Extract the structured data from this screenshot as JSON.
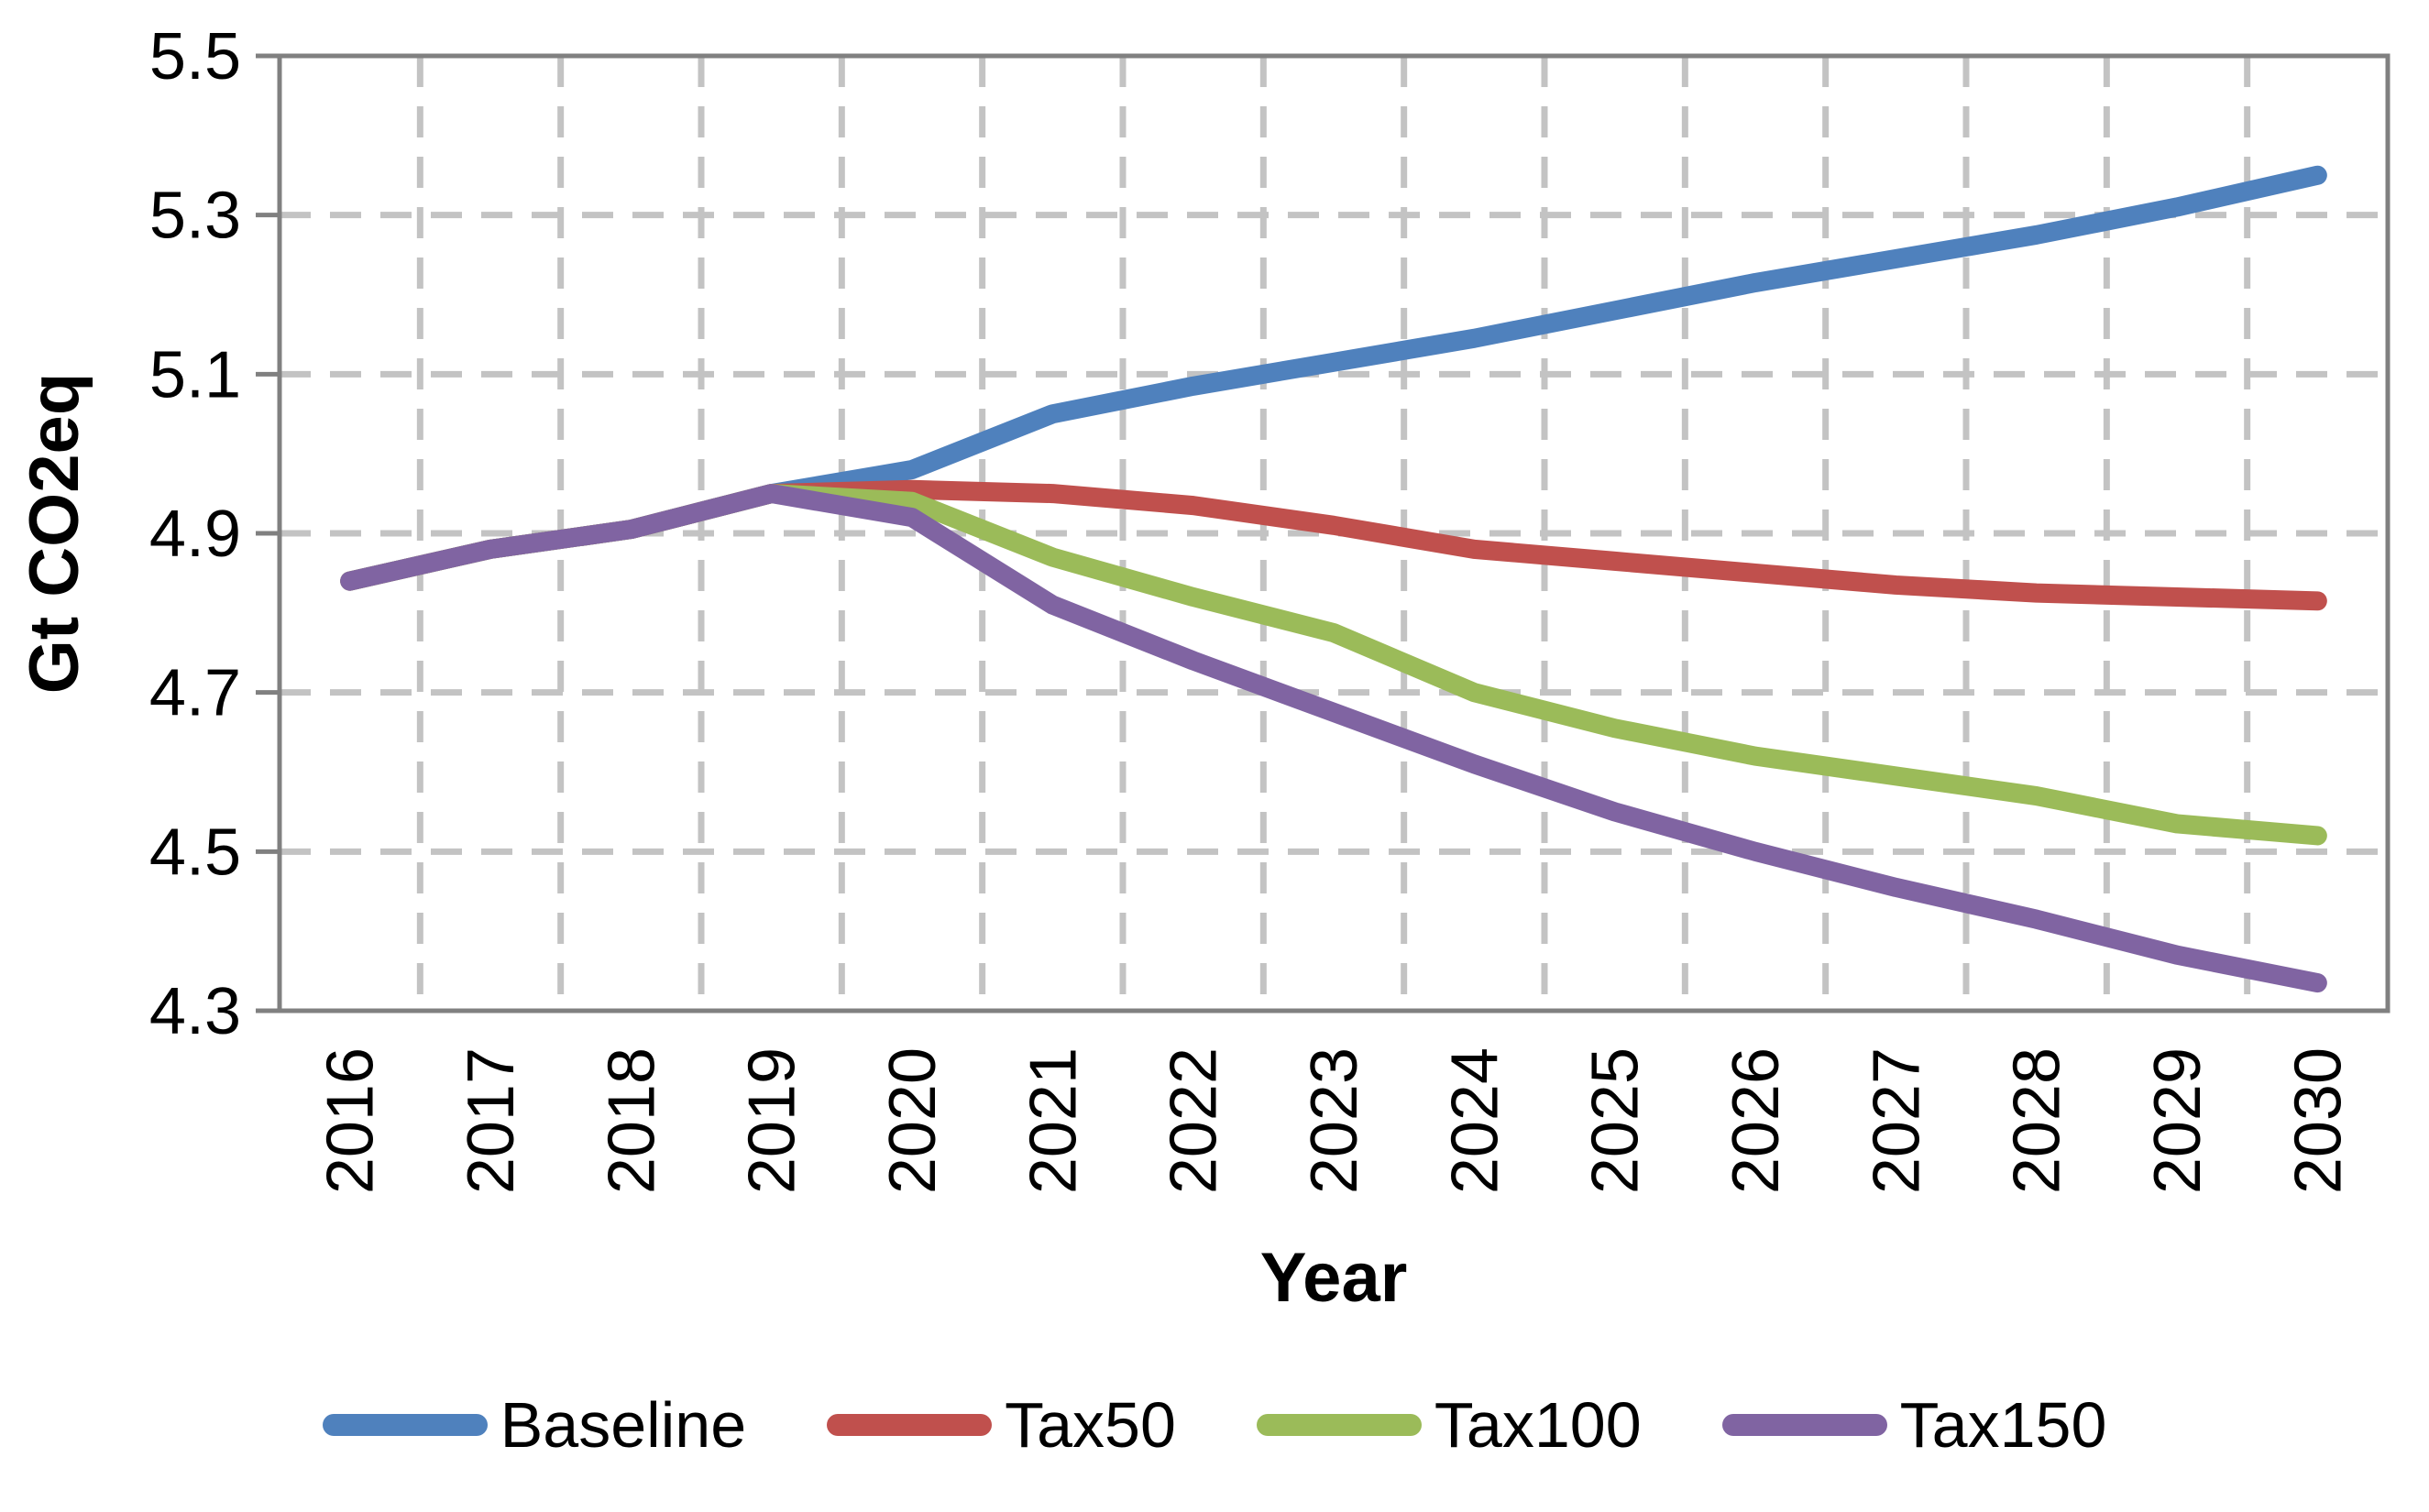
{
  "chart_data": {
    "type": "line",
    "title": "",
    "xlabel": "Year",
    "ylabel": "Gt CO2eq",
    "categories": [
      "2016",
      "2017",
      "2018",
      "2019",
      "2020",
      "2021",
      "2022",
      "2023",
      "2024",
      "2025",
      "2026",
      "2027",
      "2028",
      "2029",
      "2030"
    ],
    "series": [
      {
        "name": "Baseline",
        "color": "#4F81BD",
        "values": [
          4.84,
          4.88,
          4.905,
          4.95,
          4.98,
          5.05,
          5.085,
          5.115,
          5.145,
          5.18,
          5.215,
          5.245,
          5.275,
          5.31,
          5.35
        ]
      },
      {
        "name": "Tax50",
        "color": "#C0504D",
        "values": [
          4.84,
          4.88,
          4.905,
          4.95,
          4.955,
          4.95,
          4.935,
          4.91,
          4.88,
          4.865,
          4.85,
          4.835,
          4.825,
          4.82,
          4.815
        ]
      },
      {
        "name": "Tax100",
        "color": "#9BBB59",
        "values": [
          4.84,
          4.88,
          4.905,
          4.95,
          4.94,
          4.87,
          4.82,
          4.775,
          4.7,
          4.655,
          4.62,
          4.595,
          4.57,
          4.535,
          4.52
        ]
      },
      {
        "name": "Tax150",
        "color": "#8064A2",
        "values": [
          4.84,
          4.88,
          4.905,
          4.95,
          4.92,
          4.81,
          4.74,
          4.675,
          4.61,
          4.55,
          4.5,
          4.455,
          4.415,
          4.37,
          4.335
        ]
      }
    ],
    "ylim": [
      4.3,
      5.5
    ],
    "y_ticks": [
      "5.5",
      "5.3",
      "5.1",
      "4.9",
      "4.7",
      "4.5",
      "4.3"
    ],
    "grid": "dashed horizontal and vertical",
    "legend_position": "bottom",
    "axis_color": "#808080",
    "gridline_color": "#C3C3C3",
    "text_color": "#000000"
  }
}
